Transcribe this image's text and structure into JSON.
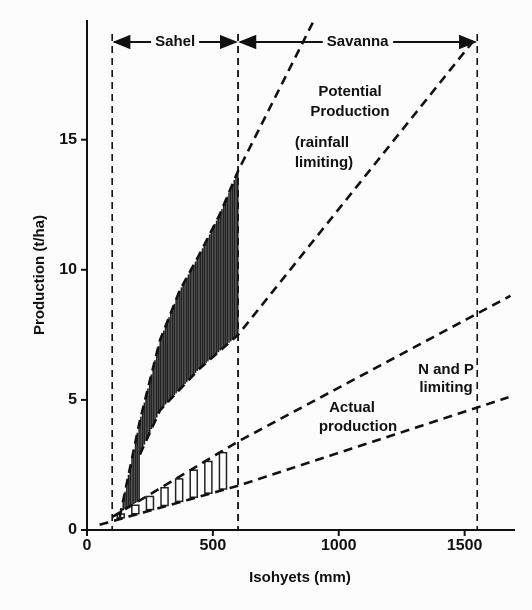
{
  "chart_data": {
    "type": "line",
    "xlabel": "Isohyets (mm)",
    "ylabel": "Production (t/ha)",
    "xlim": [
      0,
      1700
    ],
    "ylim": [
      0,
      19.6
    ],
    "xticks": [
      0,
      500,
      1000,
      1500
    ],
    "yticks": [
      0,
      5,
      10,
      15
    ],
    "regions": [
      {
        "label": "Sahel",
        "range": [
          100,
          600
        ]
      },
      {
        "label": "Savanna",
        "range": [
          600,
          1550
        ]
      }
    ],
    "annotations": [
      "Potential",
      "Production",
      "(rainfall",
      "limiting)",
      "N and P",
      "limiting",
      "Actual",
      "production"
    ],
    "series": [
      {
        "color": "#111111",
        "x": [
          130,
          210,
          290,
          368,
          447,
          526,
          600,
          902
        ],
        "values": [
          0.5,
          4.2,
          7.3,
          9.2,
          10.6,
          12.1,
          13.8,
          19.6
        ]
      },
      {
        "color": "#111111",
        "x": [
          210,
          290,
          447,
          600,
          1535
        ],
        "values": [
          2.9,
          4.6,
          6.2,
          7.5,
          18.8
        ]
      },
      {
        "color": "#111111",
        "x": [
          100,
          600,
          1682
        ],
        "values": [
          0.5,
          3.4,
          9.0
        ]
      },
      {
        "color": "#111111",
        "x": [
          50,
          600,
          1674
        ],
        "values": [
          0.2,
          1.7,
          5.1
        ]
      }
    ]
  }
}
